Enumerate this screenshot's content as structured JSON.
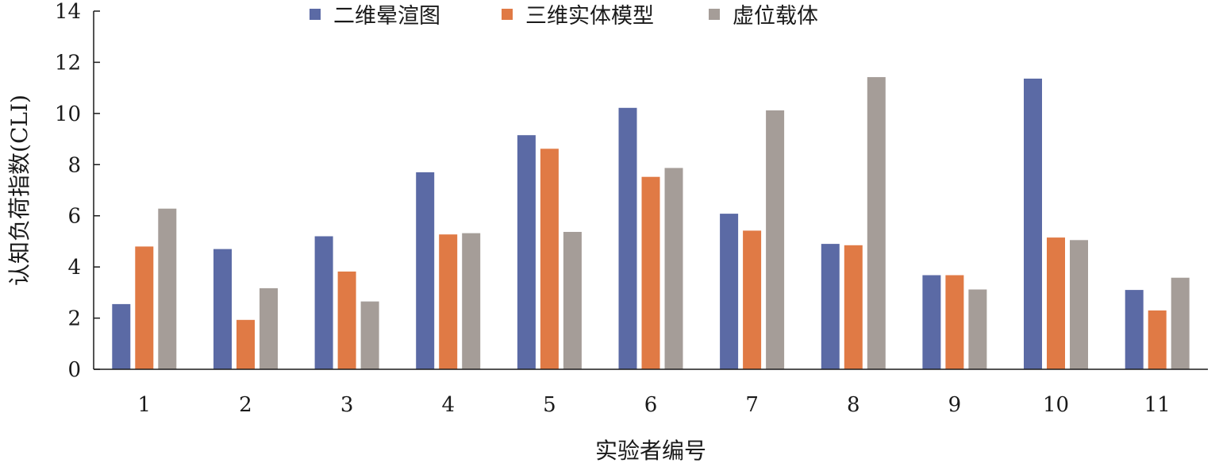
{
  "chart_data": {
    "type": "bar",
    "categories": [
      "1",
      "2",
      "3",
      "4",
      "5",
      "6",
      "7",
      "8",
      "9",
      "10",
      "11"
    ],
    "series": [
      {
        "name": "二维晕渲图",
        "color": "#5b6aa5",
        "values": [
          2.55,
          4.7,
          5.2,
          7.7,
          9.15,
          10.22,
          6.08,
          4.9,
          3.68,
          11.36,
          3.1
        ]
      },
      {
        "name": "三维实体模型",
        "color": "#e07a45",
        "values": [
          4.8,
          1.93,
          3.82,
          5.27,
          8.62,
          7.52,
          5.42,
          4.85,
          3.68,
          5.15,
          2.3
        ]
      },
      {
        "name": "虚位载体",
        "color": "#a59d98",
        "values": [
          6.28,
          3.17,
          2.65,
          5.32,
          5.37,
          7.87,
          10.12,
          11.42,
          3.12,
          5.05,
          3.58
        ]
      }
    ],
    "title": "",
    "xlabel": "实验者编号",
    "ylabel": "认知负荷指数(CLI)",
    "ylim": [
      0,
      14
    ],
    "yticks": [
      "0",
      "2",
      "4",
      "6",
      "8",
      "10",
      "12",
      "14"
    ],
    "grid": false,
    "legend_position": "top-center"
  }
}
